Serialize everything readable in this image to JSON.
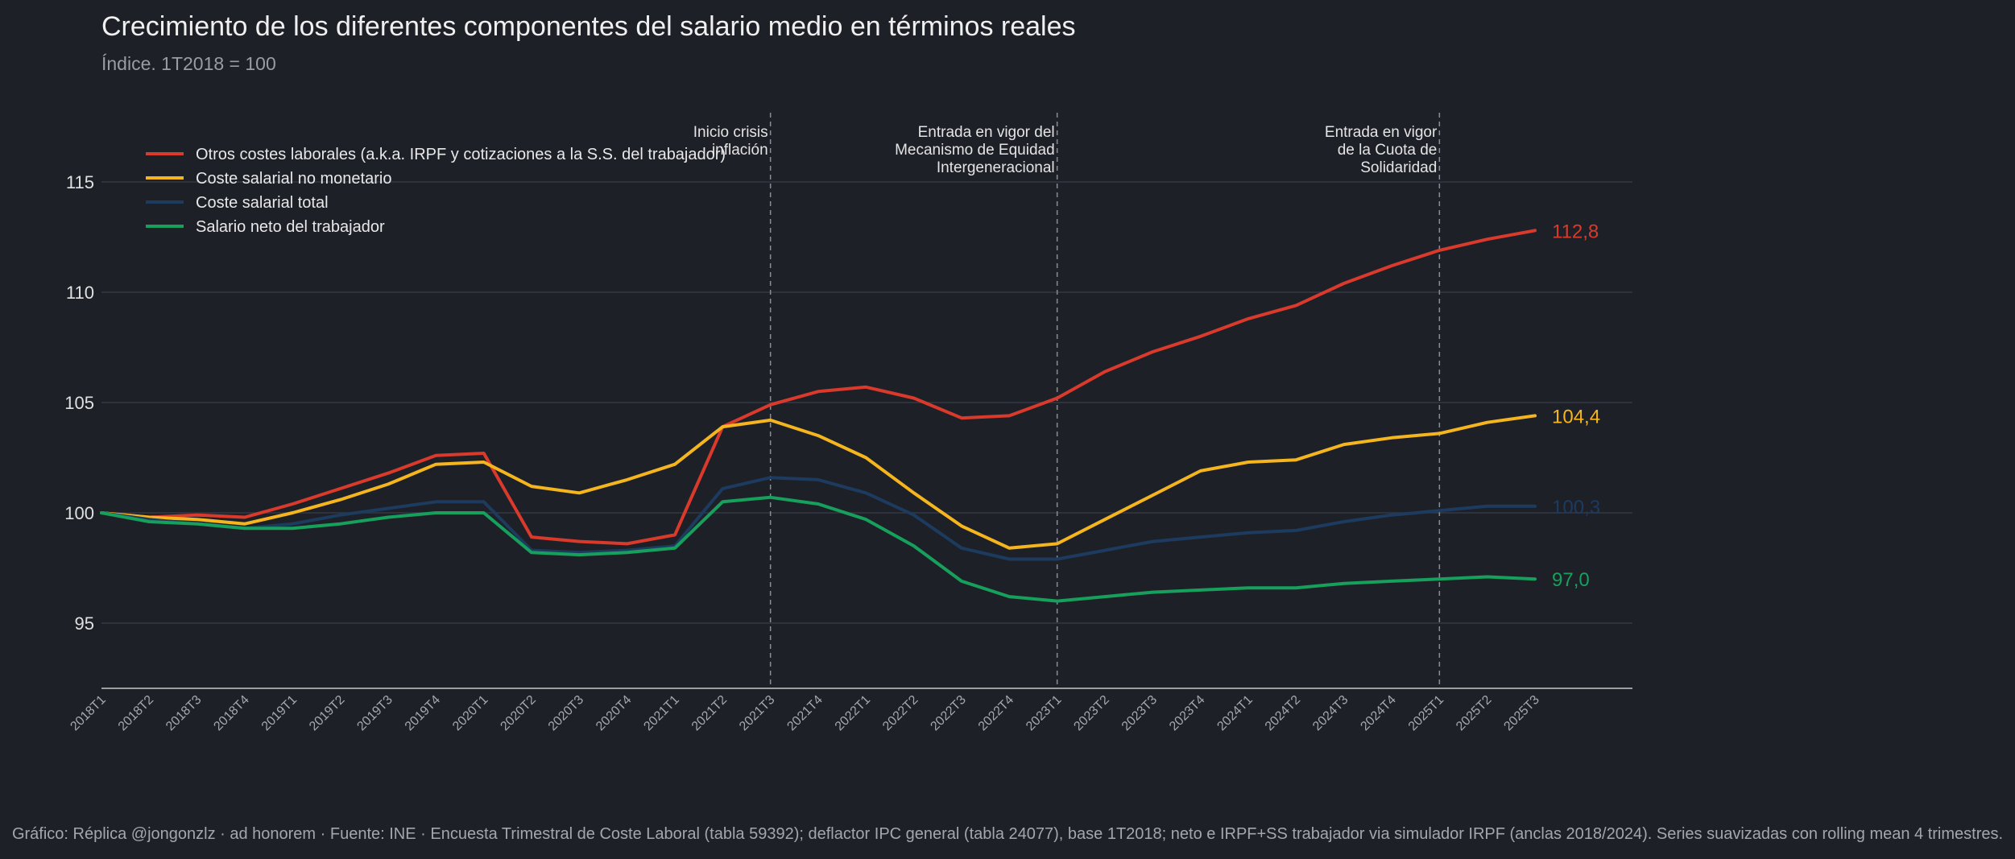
{
  "header": {
    "title": "Crecimiento de los diferentes componentes del salario medio en términos reales",
    "subtitle": "Índice. 1T2018 = 100"
  },
  "footer": {
    "text": "Gráfico: Réplica @jongonzlz · ad honorem  ·  Fuente: INE · Encuesta Trimestral de Coste Laboral (tabla 59392); deflactor IPC general (tabla 24077), base 1T2018; neto e IRPF+SS trabajador via simulador IRPF (anclas 2018/2024). Series suavizadas con rolling mean 4 trimestres."
  },
  "colors": {
    "background": "#1e2028",
    "grid": "#343843",
    "axis": "#c8c8c8",
    "vline": "#8a8d95"
  },
  "chart_data": {
    "type": "line",
    "x": [
      "2018T1",
      "2018T2",
      "2018T3",
      "2018T4",
      "2019T1",
      "2019T2",
      "2019T3",
      "2019T4",
      "2020T1",
      "2020T2",
      "2020T3",
      "2020T4",
      "2021T1",
      "2021T2",
      "2021T3",
      "2021T4",
      "2022T1",
      "2022T2",
      "2022T3",
      "2022T4",
      "2023T1",
      "2023T2",
      "2023T3",
      "2023T4",
      "2024T1",
      "2024T2",
      "2024T3",
      "2024T4",
      "2025T1",
      "2025T2",
      "2025T3"
    ],
    "y_ticks": [
      95,
      100,
      105,
      110,
      115
    ],
    "ylim": [
      92,
      118
    ],
    "grid": true,
    "legend_position": "top-left",
    "series": [
      {
        "name": "Otros costes laborales (a.k.a. IRPF y cotizaciones a la S.S. del trabajador)",
        "color": "#d93a2b",
        "values": [
          100.0,
          99.8,
          99.9,
          99.8,
          100.4,
          101.1,
          101.8,
          102.6,
          102.7,
          98.9,
          98.7,
          98.6,
          99.0,
          103.9,
          104.9,
          105.5,
          105.7,
          105.2,
          104.3,
          104.4,
          105.2,
          106.4,
          107.3,
          108.0,
          108.8,
          109.4,
          110.4,
          111.2,
          111.9,
          112.4,
          112.8
        ],
        "end_label": "112,8"
      },
      {
        "name": "Coste salarial no monetario",
        "color": "#f5b51e",
        "values": [
          100.0,
          99.8,
          99.7,
          99.5,
          100.0,
          100.6,
          101.3,
          102.2,
          102.3,
          101.2,
          100.9,
          101.5,
          102.2,
          103.9,
          104.2,
          103.5,
          102.5,
          100.9,
          99.4,
          98.4,
          98.6,
          99.7,
          100.8,
          101.9,
          102.3,
          102.4,
          103.1,
          103.4,
          103.6,
          104.1,
          104.4
        ],
        "end_label": "104,4"
      },
      {
        "name": "Coste salarial total",
        "color": "#1d3a5f",
        "values": [
          100.0,
          99.7,
          99.5,
          99.3,
          99.5,
          99.9,
          100.2,
          100.5,
          100.5,
          98.3,
          98.2,
          98.3,
          98.5,
          101.1,
          101.6,
          101.5,
          100.9,
          99.9,
          98.4,
          97.9,
          97.9,
          98.3,
          98.7,
          98.9,
          99.1,
          99.2,
          99.6,
          99.9,
          100.1,
          100.3,
          100.3
        ],
        "end_label": "100,3"
      },
      {
        "name": "Salario neto del trabajador",
        "color": "#16a05c",
        "values": [
          100.0,
          99.6,
          99.5,
          99.3,
          99.3,
          99.5,
          99.8,
          100.0,
          100.0,
          98.2,
          98.1,
          98.2,
          98.4,
          100.5,
          100.7,
          100.4,
          99.7,
          98.5,
          96.9,
          96.2,
          96.0,
          96.2,
          96.4,
          96.5,
          96.6,
          96.6,
          96.8,
          96.9,
          97.0,
          97.1,
          97.0
        ],
        "end_label": "97,0"
      }
    ],
    "events": [
      {
        "x": "2021T3",
        "label": [
          "Inicio crisis",
          "inflación"
        ]
      },
      {
        "x": "2023T1",
        "label": [
          "Entrada en vigor del",
          "Mecanismo de Equidad",
          "Intergeneracional"
        ]
      },
      {
        "x": "2025T1",
        "label": [
          "Entrada en vigor",
          "de la Cuota de",
          "Solidaridad"
        ]
      }
    ]
  }
}
